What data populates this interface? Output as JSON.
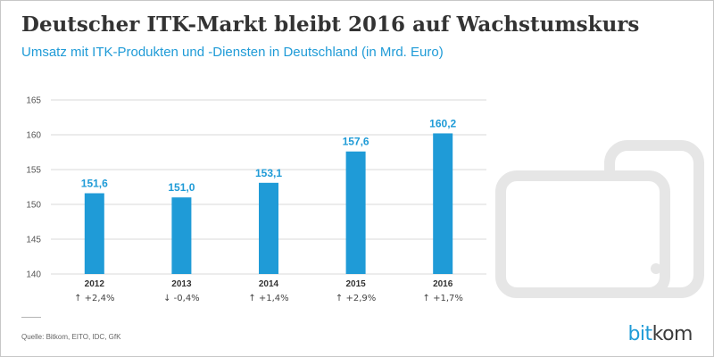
{
  "title": "Deutscher ITK-Markt bleibt 2016 auf Wachstumskurs",
  "subtitle": "Umsatz mit ITK-Produkten und -Diensten in Deutschland (in Mrd. Euro)",
  "source": "Quelle: Bitkom, EITO, IDC, GfK",
  "logo": {
    "part1": "bit",
    "part2": "kom"
  },
  "colors": {
    "bar": "#1f9bd7",
    "grid": "#d9d9d9",
    "text": "#333333",
    "decor": "#e6e6e6"
  },
  "decorative_graphic": "devices-icon",
  "chart_data": {
    "type": "bar",
    "categories": [
      "2012",
      "2013",
      "2014",
      "2015",
      "2016"
    ],
    "values": [
      151.6,
      151.0,
      153.1,
      157.6,
      160.2
    ],
    "value_labels": [
      "151,6",
      "151,0",
      "153,1",
      "157,6",
      "160,2"
    ],
    "changes": [
      "↑ +2,4%",
      "↓ -0,4%",
      "↑ +1,4%",
      "↑ +2,9%",
      "↑ +1,7%"
    ],
    "title": "Deutscher ITK-Markt bleibt 2016 auf Wachstumskurs",
    "xlabel": "",
    "ylabel": "",
    "ylim": [
      140,
      165
    ],
    "yticks": [
      140,
      145,
      150,
      155,
      160,
      165
    ],
    "grid": true
  }
}
